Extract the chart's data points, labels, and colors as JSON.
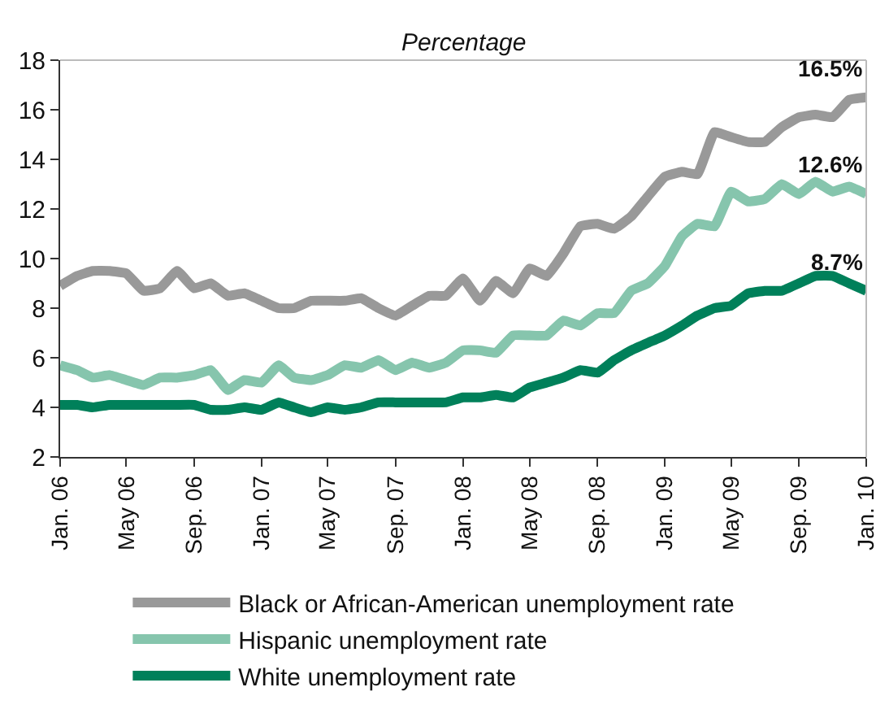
{
  "chart_data": {
    "type": "line",
    "ylabel": "Percentage",
    "x": [
      "2006-01",
      "2006-02",
      "2006-03",
      "2006-04",
      "2006-05",
      "2006-06",
      "2006-07",
      "2006-08",
      "2006-09",
      "2006-10",
      "2006-11",
      "2006-12",
      "2007-01",
      "2007-02",
      "2007-03",
      "2007-04",
      "2007-05",
      "2007-06",
      "2007-07",
      "2007-08",
      "2007-09",
      "2007-10",
      "2007-11",
      "2007-12",
      "2008-01",
      "2008-02",
      "2008-03",
      "2008-04",
      "2008-05",
      "2008-06",
      "2008-07",
      "2008-08",
      "2008-09",
      "2008-10",
      "2008-11",
      "2008-12",
      "2009-01",
      "2009-02",
      "2009-03",
      "2009-04",
      "2009-05",
      "2009-06",
      "2009-07",
      "2009-08",
      "2009-09",
      "2009-10",
      "2009-11",
      "2009-12",
      "2010-01"
    ],
    "series": [
      {
        "name": "Black or African-American unemployment rate",
        "color": "#999999",
        "values": [
          8.9,
          9.3,
          9.5,
          9.5,
          9.4,
          8.7,
          8.8,
          9.5,
          8.8,
          9.0,
          8.5,
          8.6,
          8.3,
          8.0,
          8.0,
          8.3,
          8.3,
          8.3,
          8.4,
          8.0,
          7.7,
          8.1,
          8.5,
          8.5,
          9.2,
          8.3,
          9.1,
          8.6,
          9.6,
          9.3,
          10.2,
          11.3,
          11.4,
          11.2,
          11.7,
          12.5,
          13.3,
          13.5,
          13.4,
          15.1,
          14.9,
          14.7,
          14.7,
          15.3,
          15.7,
          15.8,
          15.7,
          16.4,
          16.5
        ],
        "value_labels": [
          null,
          null,
          null,
          null,
          null,
          null,
          null,
          null,
          null,
          null,
          null,
          null,
          null,
          null,
          null,
          null,
          null,
          null,
          null,
          null,
          null,
          null,
          null,
          null,
          null,
          null,
          null,
          null,
          null,
          null,
          null,
          null,
          null,
          null,
          null,
          null,
          null,
          null,
          null,
          null,
          null,
          null,
          null,
          null,
          null,
          null,
          null,
          null,
          "16.5%"
        ]
      },
      {
        "name": "Hispanic unemployment rate",
        "color": "#86c5ad",
        "values": [
          5.7,
          5.5,
          5.2,
          5.3,
          5.1,
          4.9,
          5.2,
          5.2,
          5.3,
          5.5,
          4.7,
          5.1,
          5.0,
          5.7,
          5.2,
          5.1,
          5.3,
          5.7,
          5.6,
          5.9,
          5.5,
          5.8,
          5.6,
          5.8,
          6.3,
          6.3,
          6.2,
          6.9,
          6.9,
          6.9,
          7.5,
          7.3,
          7.8,
          7.8,
          8.7,
          9.0,
          9.7,
          10.9,
          11.4,
          11.3,
          12.7,
          12.3,
          12.4,
          13.0,
          12.6,
          13.1,
          12.7,
          12.9,
          12.6
        ],
        "value_labels": [
          null,
          null,
          null,
          null,
          null,
          null,
          null,
          null,
          null,
          null,
          null,
          null,
          null,
          null,
          null,
          null,
          null,
          null,
          null,
          null,
          null,
          null,
          null,
          null,
          null,
          null,
          null,
          null,
          null,
          null,
          null,
          null,
          null,
          null,
          null,
          null,
          null,
          null,
          null,
          null,
          null,
          null,
          null,
          null,
          null,
          null,
          null,
          null,
          "12.6%"
        ]
      },
      {
        "name": "White unemployment rate",
        "color": "#00805a",
        "values": [
          4.1,
          4.1,
          4.0,
          4.1,
          4.1,
          4.1,
          4.1,
          4.1,
          4.1,
          3.9,
          3.9,
          4.0,
          3.9,
          4.2,
          4.0,
          3.8,
          4.0,
          3.9,
          4.0,
          4.2,
          4.2,
          4.2,
          4.2,
          4.2,
          4.4,
          4.4,
          4.5,
          4.4,
          4.8,
          5.0,
          5.2,
          5.5,
          5.4,
          5.9,
          6.3,
          6.6,
          6.9,
          7.3,
          7.7,
          8.0,
          8.1,
          8.6,
          8.7,
          8.7,
          9.0,
          9.3,
          9.3,
          9.0,
          8.7
        ],
        "value_labels": [
          null,
          null,
          null,
          null,
          null,
          null,
          null,
          null,
          null,
          null,
          null,
          null,
          null,
          null,
          null,
          null,
          null,
          null,
          null,
          null,
          null,
          null,
          null,
          null,
          null,
          null,
          null,
          null,
          null,
          null,
          null,
          null,
          null,
          null,
          null,
          null,
          null,
          null,
          null,
          null,
          null,
          null,
          null,
          null,
          null,
          null,
          null,
          null,
          "8.7%"
        ]
      }
    ],
    "xlim": [
      "2006-01",
      "2010-01"
    ],
    "xticks": [
      {
        "value": "2006-01",
        "label": "Jan. 06"
      },
      {
        "value": "2006-05",
        "label": "May 06"
      },
      {
        "value": "2006-09",
        "label": "Sep. 06"
      },
      {
        "value": "2007-01",
        "label": "Jan. 07"
      },
      {
        "value": "2007-05",
        "label": "May 07"
      },
      {
        "value": "2007-09",
        "label": "Sep. 07"
      },
      {
        "value": "2008-01",
        "label": "Jan. 08"
      },
      {
        "value": "2008-05",
        "label": "May 08"
      },
      {
        "value": "2008-09",
        "label": "Sep. 08"
      },
      {
        "value": "2009-01",
        "label": "Jan. 09"
      },
      {
        "value": "2009-05",
        "label": "May 09"
      },
      {
        "value": "2009-09",
        "label": "Sep. 09"
      },
      {
        "value": "2010-01",
        "label": "Jan. 10"
      }
    ],
    "ylim": [
      2,
      18
    ],
    "yticks": [
      2,
      4,
      6,
      8,
      10,
      12,
      14,
      16,
      18
    ],
    "grid": false,
    "legend": "bottom",
    "marker": "none",
    "line_style": "solid"
  }
}
